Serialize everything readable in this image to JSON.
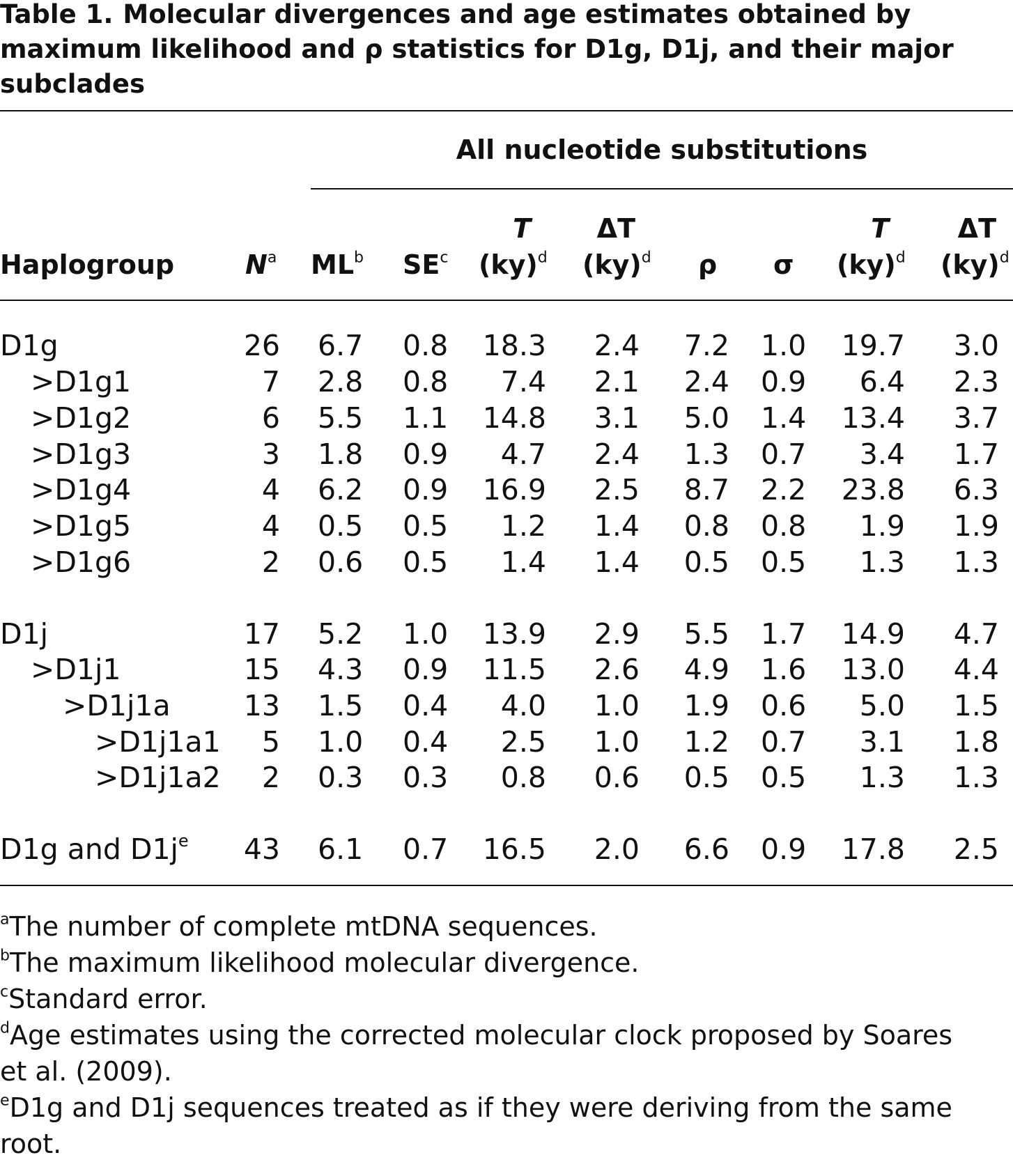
{
  "caption": {
    "label": "Table 1.",
    "text": "Molecular divergences and age estimates obtained by maximum likelihood and ρ statistics for D1g, D1j, and their major subclades"
  },
  "span_header": "All nucleotide substitutions",
  "headers": {
    "haplogroup": "Haplogroup",
    "n": "N",
    "n_sup": "a",
    "ml": "ML",
    "ml_sup": "b",
    "se": "SE",
    "se_sup": "c",
    "t1_top": "T",
    "t1_bottom": "(ky)",
    "t1_sup": "d",
    "dt1_top": "ΔT",
    "dt1_bottom": "(ky)",
    "dt1_sup": "d",
    "rho": "ρ",
    "sigma": "σ",
    "t2_top": "T",
    "t2_bottom": "(ky)",
    "t2_sup": "d",
    "dt2_top": "ΔT",
    "dt2_bottom": "(ky)",
    "dt2_sup": "d"
  },
  "rows": [
    {
      "name": "D1g",
      "sup": "",
      "indent": 0,
      "n": "26",
      "ml": "6.7",
      "se": "0.8",
      "t1": "18.3",
      "dt1": "2.4",
      "rho": "7.2",
      "sigma": "1.0",
      "t2": "19.7",
      "dt2": "3.0"
    },
    {
      "name": ">D1g1",
      "sup": "",
      "indent": 1,
      "n": "7",
      "ml": "2.8",
      "se": "0.8",
      "t1": "7.4",
      "dt1": "2.1",
      "rho": "2.4",
      "sigma": "0.9",
      "t2": "6.4",
      "dt2": "2.3"
    },
    {
      "name": ">D1g2",
      "sup": "",
      "indent": 1,
      "n": "6",
      "ml": "5.5",
      "se": "1.1",
      "t1": "14.8",
      "dt1": "3.1",
      "rho": "5.0",
      "sigma": "1.4",
      "t2": "13.4",
      "dt2": "3.7"
    },
    {
      "name": ">D1g3",
      "sup": "",
      "indent": 1,
      "n": "3",
      "ml": "1.8",
      "se": "0.9",
      "t1": "4.7",
      "dt1": "2.4",
      "rho": "1.3",
      "sigma": "0.7",
      "t2": "3.4",
      "dt2": "1.7"
    },
    {
      "name": ">D1g4",
      "sup": "",
      "indent": 1,
      "n": "4",
      "ml": "6.2",
      "se": "0.9",
      "t1": "16.9",
      "dt1": "2.5",
      "rho": "8.7",
      "sigma": "2.2",
      "t2": "23.8",
      "dt2": "6.3"
    },
    {
      "name": ">D1g5",
      "sup": "",
      "indent": 1,
      "n": "4",
      "ml": "0.5",
      "se": "0.5",
      "t1": "1.2",
      "dt1": "1.4",
      "rho": "0.8",
      "sigma": "0.8",
      "t2": "1.9",
      "dt2": "1.9"
    },
    {
      "name": ">D1g6",
      "sup": "",
      "indent": 1,
      "n": "2",
      "ml": "0.6",
      "se": "0.5",
      "t1": "1.4",
      "dt1": "1.4",
      "rho": "0.5",
      "sigma": "0.5",
      "t2": "1.3",
      "dt2": "1.3"
    },
    {
      "name": "D1j",
      "sup": "",
      "indent": 0,
      "n": "17",
      "ml": "5.2",
      "se": "1.0",
      "t1": "13.9",
      "dt1": "2.9",
      "rho": "5.5",
      "sigma": "1.7",
      "t2": "14.9",
      "dt2": "4.7"
    },
    {
      "name": ">D1j1",
      "sup": "",
      "indent": 1,
      "n": "15",
      "ml": "4.3",
      "se": "0.9",
      "t1": "11.5",
      "dt1": "2.6",
      "rho": "4.9",
      "sigma": "1.6",
      "t2": "13.0",
      "dt2": "4.4"
    },
    {
      "name": ">D1j1a",
      "sup": "",
      "indent": 2,
      "n": "13",
      "ml": "1.5",
      "se": "0.4",
      "t1": "4.0",
      "dt1": "1.0",
      "rho": "1.9",
      "sigma": "0.6",
      "t2": "5.0",
      "dt2": "1.5"
    },
    {
      "name": ">D1j1a1",
      "sup": "",
      "indent": 3,
      "n": "5",
      "ml": "1.0",
      "se": "0.4",
      "t1": "2.5",
      "dt1": "1.0",
      "rho": "1.2",
      "sigma": "0.7",
      "t2": "3.1",
      "dt2": "1.8"
    },
    {
      "name": ">D1j1a2",
      "sup": "",
      "indent": 3,
      "n": "2",
      "ml": "0.3",
      "se": "0.3",
      "t1": "0.8",
      "dt1": "0.6",
      "rho": "0.5",
      "sigma": "0.5",
      "t2": "1.3",
      "dt2": "1.3"
    },
    {
      "name": "D1g and D1j",
      "sup": "e",
      "indent": 0,
      "n": "43",
      "ml": "6.1",
      "se": "0.7",
      "t1": "16.5",
      "dt1": "2.0",
      "rho": "6.6",
      "sigma": "0.9",
      "t2": "17.8",
      "dt2": "2.5"
    }
  ],
  "footnotes": [
    {
      "mark": "a",
      "text": "The number of complete mtDNA sequences."
    },
    {
      "mark": "b",
      "text": "The maximum likelihood molecular divergence."
    },
    {
      "mark": "c",
      "text": "Standard error."
    },
    {
      "mark": "d",
      "text": "Age estimates using the corrected molecular clock proposed by Soares",
      "cont": "et al. (2009)."
    },
    {
      "mark": "e",
      "text": "D1g and D1j sequences treated as if they were deriving from the same",
      "cont": "root."
    }
  ]
}
